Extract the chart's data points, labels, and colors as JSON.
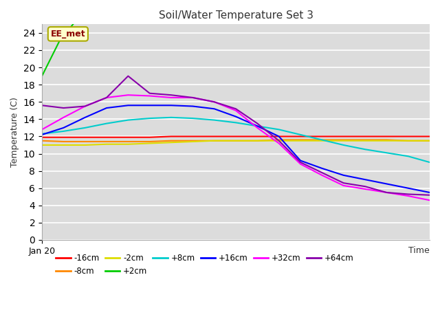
{
  "title": "Soil/Water Temperature Set 3",
  "xlabel": "Time",
  "ylabel": "Temperature (C)",
  "ylim": [
    0,
    25
  ],
  "xlim": [
    0,
    90
  ],
  "yticks": [
    0,
    2,
    4,
    6,
    8,
    10,
    12,
    14,
    16,
    18,
    20,
    22,
    24
  ],
  "annotation_text": "EE_met",
  "plot_bg_color": "#dcdcdc",
  "fig_bg_color": "#ffffff",
  "grid_color": "#ffffff",
  "series": {
    "-16cm": {
      "color": "#ff0000",
      "x": [
        0,
        5,
        10,
        15,
        20,
        25,
        30,
        35,
        40,
        45,
        50,
        55,
        60,
        65,
        70,
        75,
        80,
        85,
        90
      ],
      "y": [
        11.9,
        11.9,
        11.9,
        11.9,
        11.9,
        11.9,
        12.0,
        12.0,
        12.0,
        12.0,
        12.0,
        12.0,
        12.0,
        12.0,
        12.0,
        12.0,
        12.0,
        12.0,
        12.0
      ]
    },
    "-8cm": {
      "color": "#ff8800",
      "x": [
        0,
        5,
        10,
        15,
        20,
        25,
        30,
        35,
        40,
        45,
        50,
        55,
        60,
        65,
        70,
        75,
        80,
        85,
        90
      ],
      "y": [
        11.5,
        11.4,
        11.4,
        11.4,
        11.4,
        11.4,
        11.5,
        11.5,
        11.5,
        11.5,
        11.5,
        11.6,
        11.6,
        11.6,
        11.6,
        11.6,
        11.6,
        11.5,
        11.5
      ]
    },
    "-2cm": {
      "color": "#dddd00",
      "x": [
        0,
        5,
        10,
        15,
        20,
        25,
        30,
        35,
        40,
        45,
        50,
        55,
        60,
        65,
        70,
        75,
        80,
        85,
        90
      ],
      "y": [
        11.0,
        11.0,
        11.0,
        11.1,
        11.1,
        11.2,
        11.3,
        11.4,
        11.5,
        11.5,
        11.5,
        11.5,
        11.5,
        11.5,
        11.5,
        11.5,
        11.5,
        11.5,
        11.5
      ]
    },
    "+2cm": {
      "color": "#00cc00",
      "x": [
        0,
        4,
        8
      ],
      "y": [
        19.0,
        23.0,
        25.5
      ]
    },
    "+8cm": {
      "color": "#00cccc",
      "x": [
        0,
        5,
        10,
        15,
        20,
        25,
        30,
        35,
        40,
        45,
        50,
        55,
        60,
        65,
        70,
        75,
        80,
        85,
        90
      ],
      "y": [
        12.3,
        12.6,
        13.0,
        13.5,
        13.9,
        14.1,
        14.2,
        14.1,
        13.9,
        13.6,
        13.2,
        12.8,
        12.2,
        11.6,
        11.0,
        10.5,
        10.1,
        9.7,
        9.0
      ]
    },
    "+16cm": {
      "color": "#0000ff",
      "x": [
        0,
        5,
        10,
        15,
        20,
        25,
        30,
        35,
        40,
        45,
        50,
        55,
        60,
        65,
        70,
        75,
        80,
        85,
        90
      ],
      "y": [
        12.2,
        13.0,
        14.2,
        15.3,
        15.6,
        15.6,
        15.6,
        15.5,
        15.2,
        14.3,
        13.2,
        12.0,
        9.2,
        8.3,
        7.5,
        7.0,
        6.5,
        6.0,
        5.5
      ]
    },
    "+32cm": {
      "color": "#ff00ff",
      "x": [
        0,
        5,
        10,
        15,
        20,
        25,
        30,
        35,
        40,
        45,
        50,
        55,
        60,
        65,
        70,
        75,
        80,
        85,
        90
      ],
      "y": [
        12.8,
        14.2,
        15.5,
        16.5,
        16.8,
        16.7,
        16.5,
        16.5,
        16.0,
        15.0,
        13.0,
        11.2,
        8.8,
        7.5,
        6.3,
        5.9,
        5.5,
        5.1,
        4.6
      ]
    },
    "+64cm": {
      "color": "#8800aa",
      "x": [
        0,
        5,
        10,
        15,
        20,
        25,
        30,
        35,
        40,
        45,
        50,
        55,
        60,
        65,
        70,
        75,
        80,
        85,
        90
      ],
      "y": [
        15.6,
        15.3,
        15.5,
        16.5,
        19.0,
        17.0,
        16.8,
        16.5,
        16.0,
        15.2,
        13.5,
        11.5,
        9.0,
        7.8,
        6.6,
        6.2,
        5.5,
        5.3,
        5.2
      ]
    }
  },
  "legend_order": [
    "-16cm",
    "-8cm",
    "-2cm",
    "+2cm",
    "+8cm",
    "+16cm",
    "+32cm",
    "+64cm"
  ]
}
